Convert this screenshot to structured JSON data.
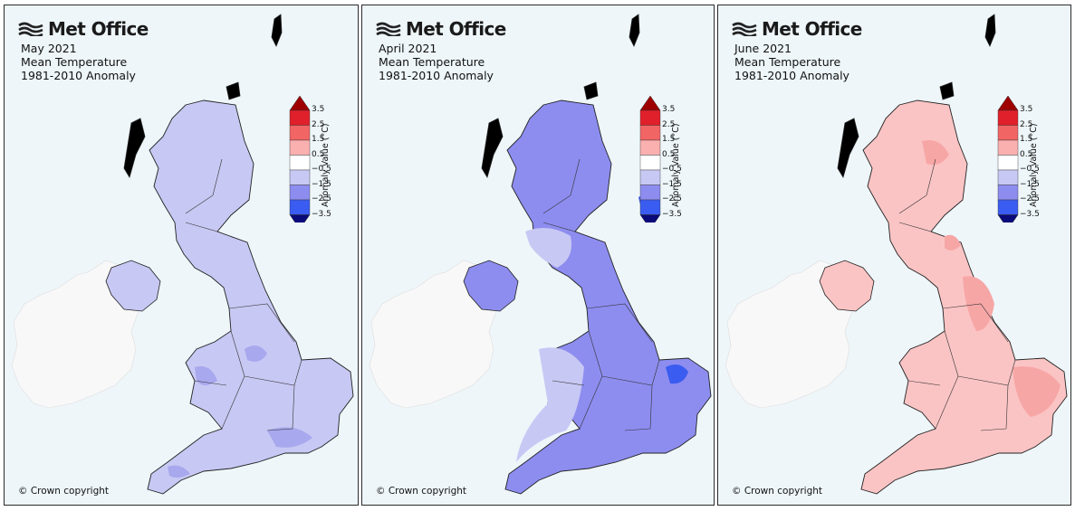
{
  "brand": "Met Office",
  "copyright": "© Crown copyright",
  "legend": {
    "title": "Anomaly Value (°C)",
    "ticks": [
      "3.5",
      "2.5",
      "1.5",
      "0.5",
      "−0.5",
      "−1.5",
      "−2.5",
      "−3.5"
    ],
    "bins": [
      {
        "range": "> 3.5",
        "color": "#9e0000"
      },
      {
        "range": "2.5 to 3.5",
        "color": "#e0202a"
      },
      {
        "range": "1.5 to 2.5",
        "color": "#f26565"
      },
      {
        "range": "0.5 to 1.5",
        "color": "#fbb0b0"
      },
      {
        "range": "-0.5 to 0.5",
        "color": "#ffffff"
      },
      {
        "range": "-1.5 to -0.5",
        "color": "#c8c8f4"
      },
      {
        "range": "-2.5 to -1.5",
        "color": "#8d8df0"
      },
      {
        "range": "-3.5 to -2.5",
        "color": "#3a5cf0"
      },
      {
        "range": "< -3.5",
        "color": "#0a0a7a"
      }
    ]
  },
  "panels": [
    {
      "title_line1": "May 2021",
      "title_line2": "Mean Temperature",
      "title_line3": "1981-2010 Anomaly",
      "dominant_fill": "#c8c8f4",
      "patch_fill": "#a8a8ee",
      "dominant_range": "-1.5 to -0.5 °C"
    },
    {
      "title_line1": "April 2021",
      "title_line2": "Mean Temperature",
      "title_line3": "1981-2010 Anomaly",
      "dominant_fill": "#8d8df0",
      "patch_fill": "#c8c8f4",
      "dominant_range": "-2.5 to -1.5 °C"
    },
    {
      "title_line1": "June 2021",
      "title_line2": "Mean Temperature",
      "title_line3": "1981-2010 Anomaly",
      "dominant_fill": "#fbc4c4",
      "patch_fill": "#f7a6a6",
      "dominant_range": "0.5 to 1.5 °C"
    }
  ]
}
